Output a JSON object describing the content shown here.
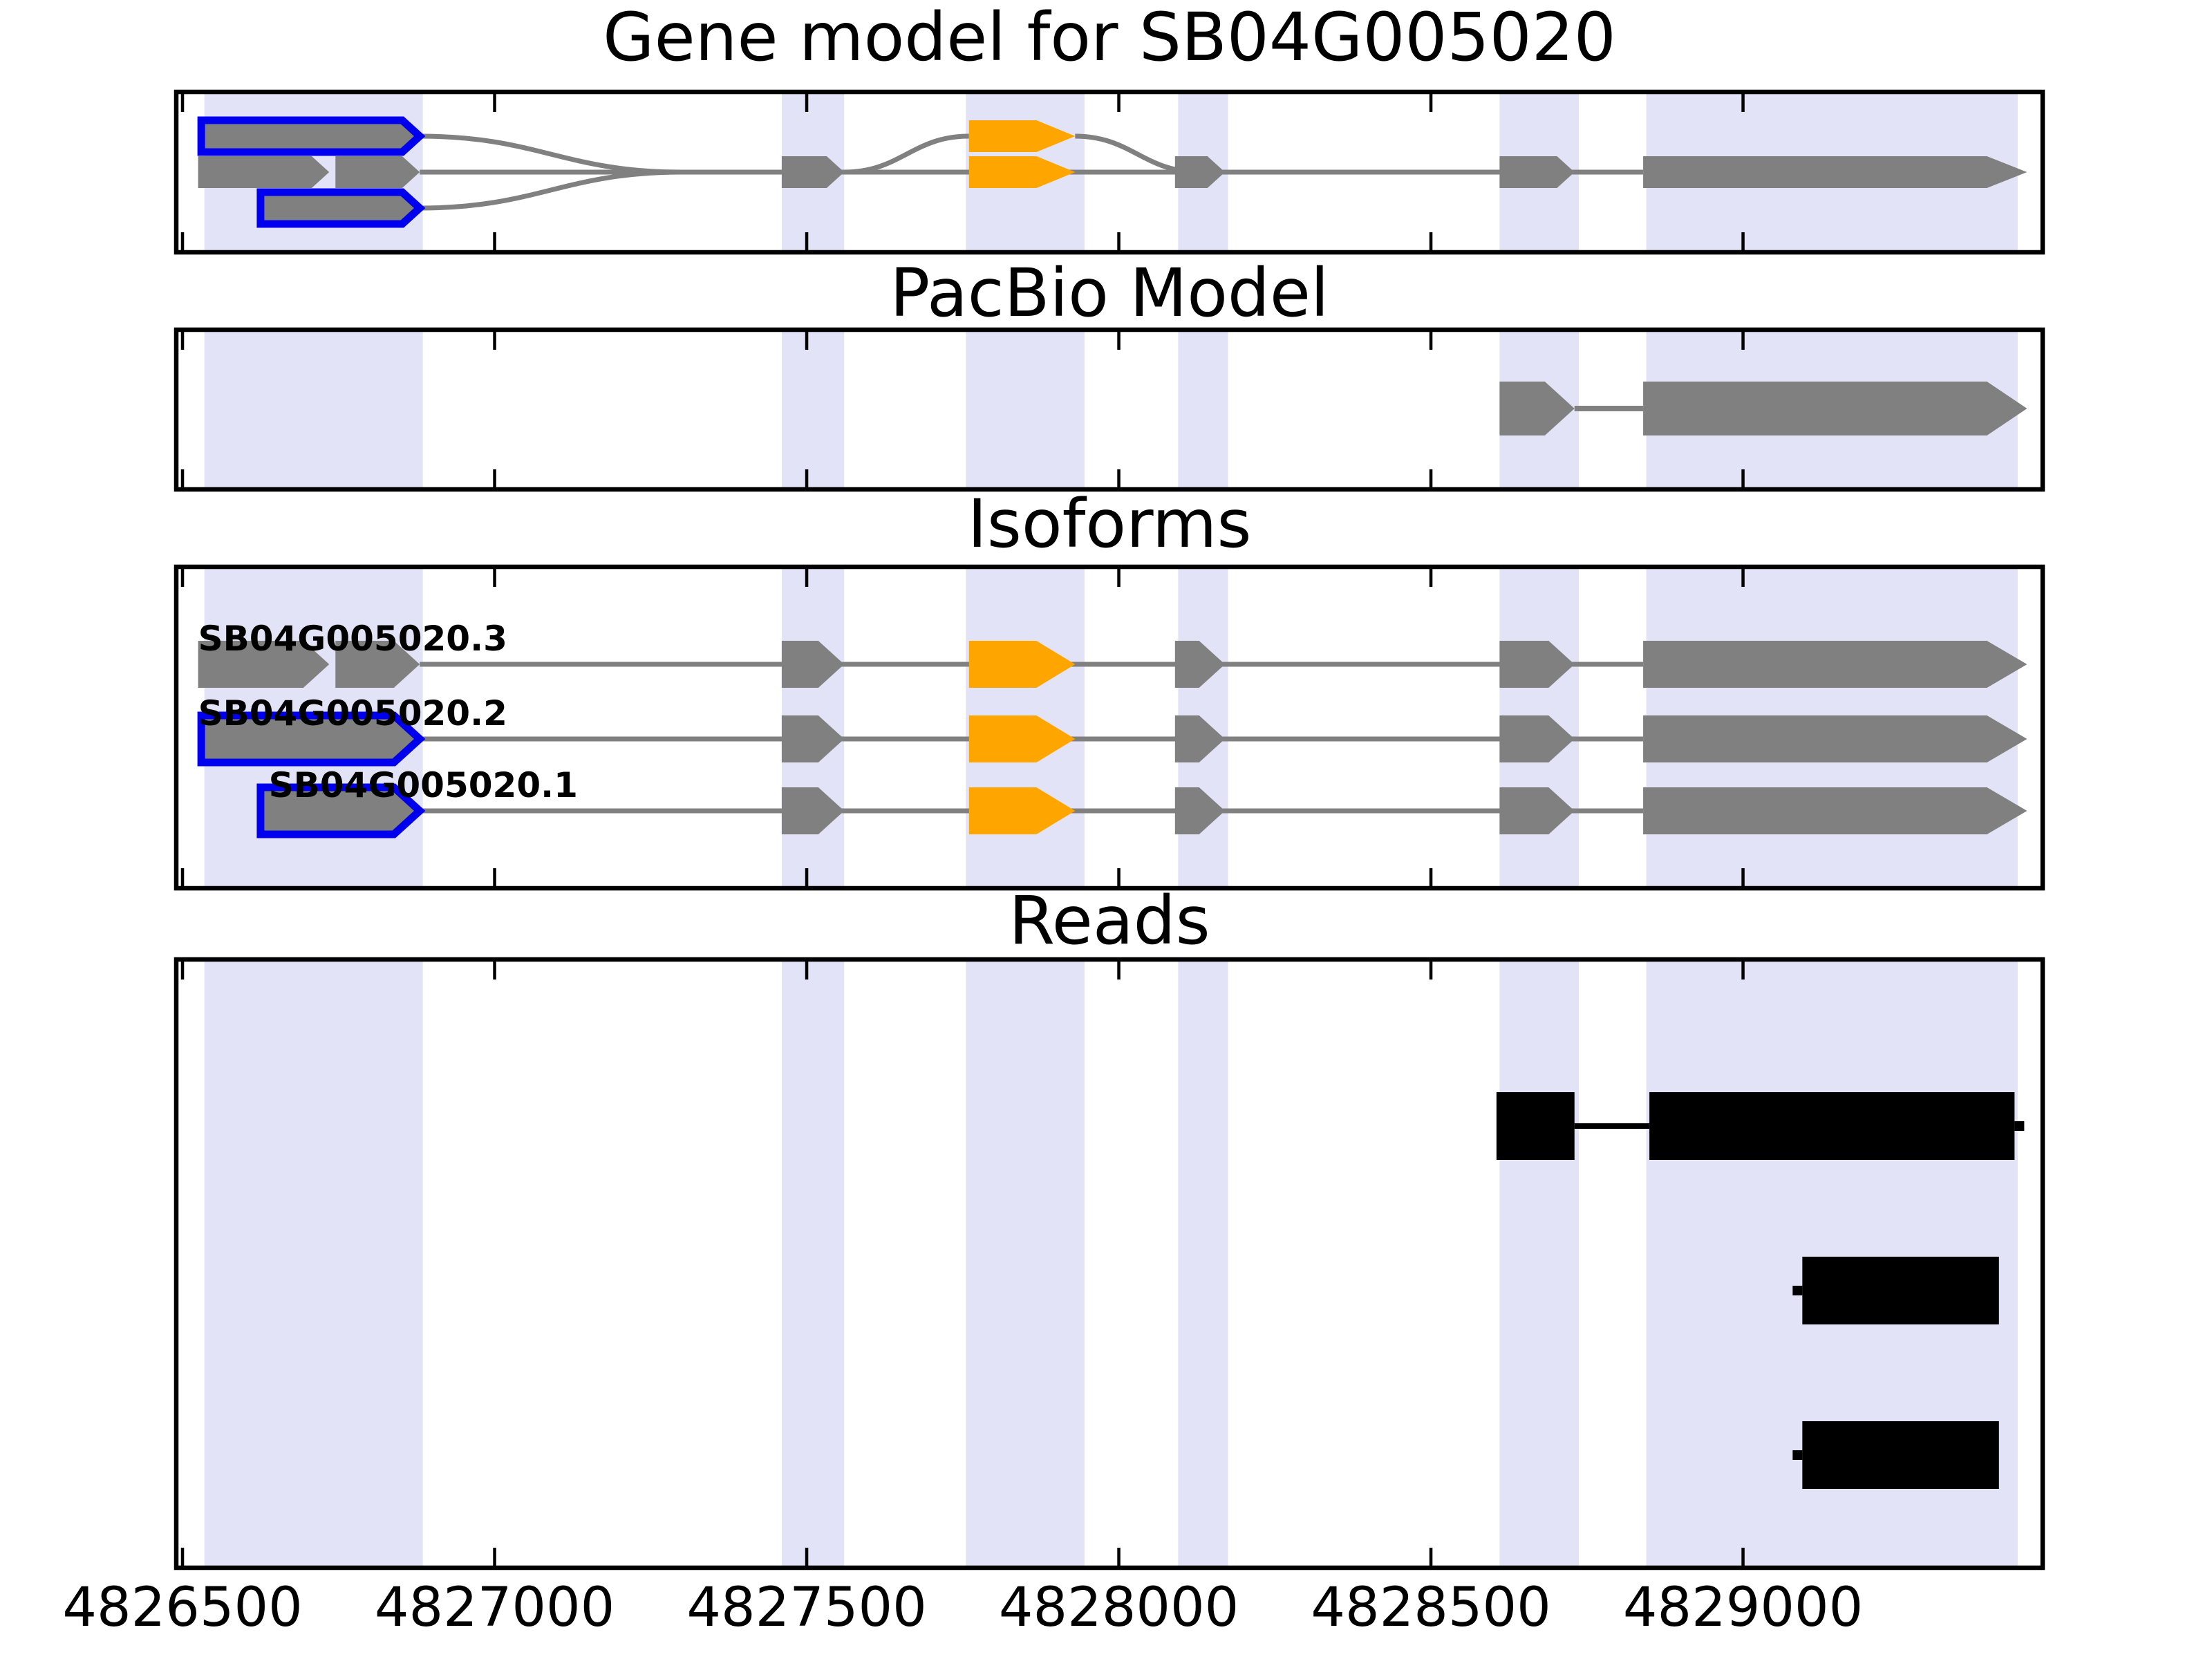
{
  "figure": {
    "gene_id": "SB04G005020",
    "panels": [
      "Gene model for SB04G005020",
      "PacBio Model",
      "Isoforms",
      "Reads"
    ]
  },
  "chart_data": {
    "type": "gene-model-genome-browser",
    "x_axis": {
      "range": [
        4826490,
        4829480
      ],
      "ticks": [
        4826500,
        4827000,
        4827500,
        4828000,
        4828500,
        4829000
      ],
      "tick_labels": [
        "4826500",
        "4827000",
        "4827500",
        "4828000",
        "4828500",
        "4829000"
      ]
    },
    "highlight_regions": [
      [
        4826535,
        4826885
      ],
      [
        4827460,
        4827560
      ],
      [
        4827755,
        4827945
      ],
      [
        4828095,
        4828175
      ],
      [
        4828610,
        4828737
      ],
      [
        4828845,
        4829440
      ]
    ],
    "gene_model": {
      "title": "Gene model for SB04G005020",
      "features": [
        {
          "start": 4826530,
          "end": 4826880,
          "row": 0,
          "color": "gray",
          "outline": "blue",
          "kind": "exon"
        },
        {
          "start": 4826525,
          "end": 4826735,
          "row": 1,
          "color": "gray",
          "kind": "exon"
        },
        {
          "start": 4826745,
          "end": 4826880,
          "row": 1,
          "color": "gray",
          "kind": "exon"
        },
        {
          "start": 4826625,
          "end": 4826880,
          "row": 2,
          "color": "gray",
          "outline": "blue",
          "kind": "exon"
        },
        {
          "start": 4827460,
          "end": 4827560,
          "row": 1,
          "color": "gray",
          "kind": "exon"
        },
        {
          "start": 4827760,
          "end": 4827930,
          "row": 0,
          "color": "orange",
          "kind": "exon"
        },
        {
          "start": 4827760,
          "end": 4827930,
          "row": 1,
          "color": "orange",
          "kind": "exon"
        },
        {
          "start": 4828090,
          "end": 4828170,
          "row": 1,
          "color": "gray",
          "kind": "exon"
        },
        {
          "start": 4828610,
          "end": 4828730,
          "row": 1,
          "color": "gray",
          "kind": "exon"
        },
        {
          "start": 4828840,
          "end": 4829455,
          "row": 1,
          "color": "gray",
          "kind": "exon_arrow"
        }
      ],
      "baseline": {
        "start": 4826880,
        "end": 4828840,
        "row": 1
      },
      "splice_arcs": [
        {
          "from": [
            4826880,
            0
          ],
          "to": [
            4827300,
            1
          ]
        },
        {
          "from": [
            4826880,
            2
          ],
          "to": [
            4827300,
            1
          ]
        },
        {
          "from": [
            4827560,
            1
          ],
          "to": [
            4827760,
            0
          ]
        },
        {
          "from": [
            4827930,
            0
          ],
          "to": [
            4828130,
            1
          ]
        }
      ]
    },
    "pacbio_model": {
      "title": "PacBio Model",
      "features": [
        {
          "start": 4828610,
          "end": 4828730,
          "color": "gray",
          "kind": "exon"
        },
        {
          "start": 4828840,
          "end": 4829455,
          "color": "gray",
          "kind": "exon_arrow"
        }
      ],
      "connector": [
        4828730,
        4828840
      ]
    },
    "isoforms": {
      "title": "Isoforms",
      "transcripts": [
        {
          "name": "SB04G005020.3",
          "label_pos": 4826525,
          "selected": false,
          "first_exons": [
            [
              4826525,
              4826735
            ],
            [
              4826745,
              4826880
            ]
          ]
        },
        {
          "name": "SB04G005020.2",
          "label_pos": 4826525,
          "selected": true,
          "first_exons": [
            [
              4826530,
              4826880
            ]
          ]
        },
        {
          "name": "SB04G005020.1",
          "label_pos": 4826638,
          "selected": true,
          "first_exons": [
            [
              4826625,
              4826880
            ]
          ]
        }
      ],
      "shared_exons": [
        {
          "start": 4827460,
          "end": 4827560,
          "color": "gray",
          "kind": "exon"
        },
        {
          "start": 4827760,
          "end": 4827930,
          "color": "orange",
          "kind": "exon"
        },
        {
          "start": 4828090,
          "end": 4828170,
          "color": "gray",
          "kind": "exon"
        },
        {
          "start": 4828610,
          "end": 4828730,
          "color": "gray",
          "kind": "exon"
        },
        {
          "start": 4828840,
          "end": 4829455,
          "color": "gray",
          "kind": "exon_arrow"
        }
      ],
      "intron_span": [
        4826880,
        4828840
      ]
    },
    "reads": {
      "title": "Reads",
      "reads": [
        {
          "blocks": [
            [
              4828605,
              4828730
            ],
            [
              4828850,
              4829435
            ]
          ],
          "gap_line": true,
          "stub": "right"
        },
        {
          "blocks": [
            [
              4829095,
              4829410
            ]
          ],
          "gap_line": false,
          "stub": "left"
        },
        {
          "blocks": [
            [
              4829095,
              4829410
            ]
          ],
          "gap_line": false,
          "stub": "left"
        }
      ]
    },
    "colors": {
      "feature_gray": "#808080",
      "cds_orange": "#FFA500",
      "selected_outline_blue": "#0000EE",
      "exon_band_lavender": "#E3E3F8",
      "read_black": "#000000",
      "axis_black": "#000000",
      "background": "#FFFFFF"
    }
  }
}
